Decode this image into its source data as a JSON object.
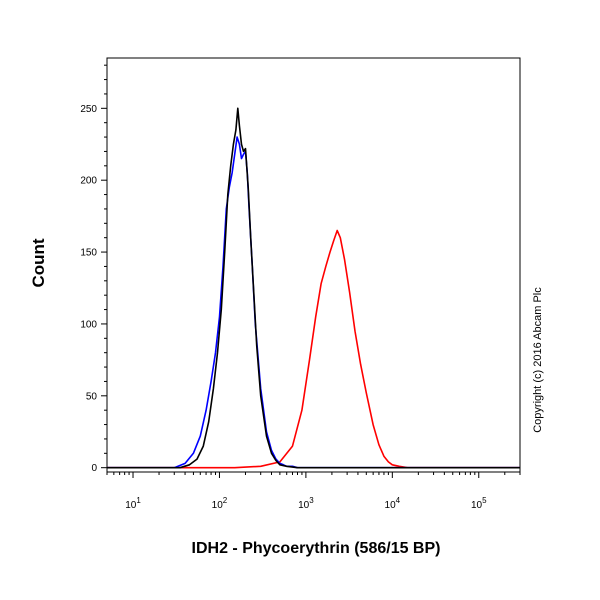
{
  "chart_data": {
    "type": "line",
    "xlabel": "IDH2 - Phycoerythrin (586/15 BP)",
    "ylabel": "Count",
    "x_scale": "log",
    "xlim": [
      5,
      300000
    ],
    "ylim": [
      -3,
      285
    ],
    "y_ticks": [
      0,
      50,
      100,
      150,
      200,
      250
    ],
    "x_ticks": [
      {
        "value": 10,
        "base": "10",
        "exp": "1"
      },
      {
        "value": 100,
        "base": "10",
        "exp": "2"
      },
      {
        "value": 1000,
        "base": "10",
        "exp": "3"
      },
      {
        "value": 10000,
        "base": "10",
        "exp": "4"
      },
      {
        "value": 100000,
        "base": "10",
        "exp": "5"
      }
    ],
    "legend": "none",
    "grid": false,
    "series": [
      {
        "color": "#ff0000",
        "x": [
          5,
          150,
          300,
          500,
          700,
          900,
          1100,
          1300,
          1500,
          1700,
          1900,
          2100,
          2300,
          2500,
          2800,
          3200,
          3700,
          4300,
          5000,
          6000,
          7000,
          8000,
          9000,
          10000,
          12000,
          15000,
          300000
        ],
        "y": [
          0,
          0,
          1,
          4,
          15,
          40,
          75,
          105,
          128,
          140,
          150,
          158,
          165,
          160,
          145,
          122,
          95,
          72,
          52,
          30,
          16,
          8,
          4,
          2,
          1,
          0,
          0
        ]
      },
      {
        "color": "#0000ff",
        "x": [
          5,
          30,
          40,
          50,
          60,
          70,
          80,
          90,
          100,
          110,
          120,
          130,
          140,
          150,
          160,
          170,
          180,
          190,
          200,
          210,
          220,
          240,
          260,
          300,
          350,
          400,
          450,
          500,
          550,
          600,
          700,
          800,
          900,
          1000,
          300000
        ],
        "y": [
          0,
          0,
          3,
          10,
          22,
          40,
          60,
          80,
          105,
          140,
          180,
          195,
          205,
          218,
          230,
          225,
          215,
          218,
          220,
          205,
          180,
          140,
          100,
          55,
          25,
          12,
          6,
          3,
          2,
          1,
          1,
          0,
          0,
          0,
          0
        ]
      },
      {
        "color": "#000000",
        "x": [
          5,
          35,
          45,
          55,
          65,
          75,
          85,
          95,
          105,
          115,
          125,
          135,
          145,
          155,
          163,
          170,
          180,
          190,
          200,
          215,
          230,
          250,
          270,
          300,
          350,
          400,
          450,
          500,
          600,
          800,
          300000
        ],
        "y": [
          0,
          0,
          2,
          6,
          15,
          32,
          55,
          80,
          110,
          150,
          190,
          210,
          225,
          235,
          250,
          238,
          225,
          220,
          222,
          195,
          160,
          120,
          85,
          50,
          22,
          10,
          5,
          2,
          1,
          0,
          0
        ]
      }
    ]
  },
  "watermark": "Copyright (c) 2016 Abcam Plc"
}
